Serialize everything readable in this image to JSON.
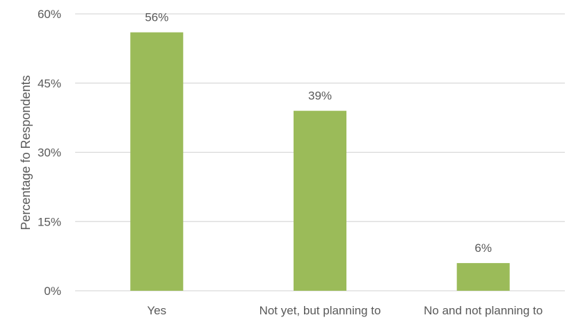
{
  "chart_data": {
    "type": "bar",
    "categories": [
      "Yes",
      "Not yet, but planning to",
      "No and not planning to"
    ],
    "values": [
      56,
      39,
      6
    ],
    "data_labels": [
      "56%",
      "39%",
      "6%"
    ],
    "title": "",
    "xlabel": "",
    "ylabel": "Percentage fo Respondents",
    "ylim": [
      0,
      60
    ],
    "yticks": [
      0,
      15,
      30,
      45,
      60
    ],
    "ytick_labels": [
      "0%",
      "15%",
      "30%",
      "45%",
      "60%"
    ],
    "grid": true,
    "legend": "none",
    "bar_color": "#9bbb59"
  }
}
